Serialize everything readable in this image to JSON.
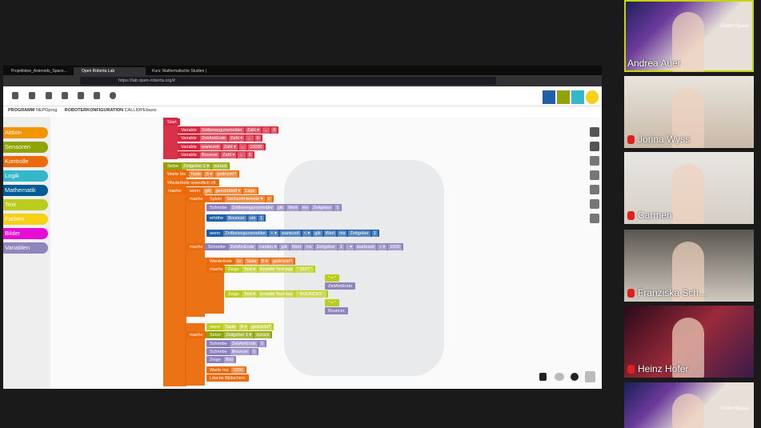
{
  "browser": {
    "tabs": [
      "Projektidee_Asteroids_Space...",
      "Open Roberta Lab",
      "Kurs: Mathematische Studien |"
    ],
    "url": "https://lab.open-roberta.org/#"
  },
  "menu": {
    "program_label": "PROGRAMM",
    "program_name": "NEPOprog",
    "config_label": "ROBOTERKONFIGURATION",
    "config_name": "CALLIOPEbasis"
  },
  "categories": [
    "Aktion",
    "Sensoren",
    "Kontrolle",
    "Logik",
    "Mathematik",
    "Text",
    "Farben",
    "Bilder",
    "Variablen"
  ],
  "blocks": [
    {
      "parts": [
        "Start"
      ]
    },
    {
      "parts": [
        "Variable",
        "Zeitbewegunsmelder",
        "Zahl ▾",
        "←",
        "0"
      ]
    },
    {
      "parts": [
        "Variable",
        "ZeitAmEnde",
        "Zahl ▾",
        "←",
        "0"
      ]
    },
    {
      "parts": [
        "Variable",
        "wartezeit",
        "Zahl ▾",
        "←",
        "10000"
      ]
    },
    {
      "parts": [
        "Variable",
        "Bouncer",
        "Zahl ▾",
        "←",
        "0"
      ]
    },
    {
      "parts": [
        "Setze",
        "Zeitgeber 1 ▾",
        "zurück"
      ]
    },
    {
      "parts": [
        "Warte bis",
        "Taste",
        "B ▾",
        "gedrückt?"
      ]
    },
    {
      "parts": [
        "Wiederhole unendlich oft"
      ]
    },
    {
      "parts": [
        "mache"
      ]
    },
    {
      "parts": [
        "wenn",
        "gib",
        "geschüttelt ▾",
        "Lage"
      ]
    },
    {
      "parts": [
        "mache"
      ]
    },
    {
      "parts": [
        "Spiele",
        "Sechzehntelnote ▾",
        "c'"
      ]
    },
    {
      "parts": [
        "Schreibe",
        "Zeitbewegunsmelder",
        "gib",
        "Wert",
        "ms",
        "Zeitgeber",
        "1"
      ]
    },
    {
      "parts": [
        "erhöhe",
        "Bouncer",
        "um",
        "1"
      ]
    },
    {
      "parts": [
        "wenn",
        "Zeitbewegunsmelder",
        "+ ▾",
        "wartezeit",
        "< ▾",
        "gib",
        "Wert",
        "ms",
        "Zeitgeber",
        "1"
      ]
    },
    {
      "parts": [
        "mache"
      ]
    },
    {
      "parts": [
        "Schreibe",
        "ZeitAmEnde",
        "runden ▾",
        "gib",
        "Wert",
        "ms",
        "Zeitgeber",
        "1",
        "- ▾",
        "wartezeit",
        "÷ ▾",
        "1000"
      ]
    },
    {
      "parts": [
        "Wiederhole",
        "1x",
        "Taste",
        "B ▾",
        "gedrückt?"
      ]
    },
    {
      "parts": [
        "mache"
      ]
    },
    {
      "parts": [
        "Zeige",
        "Text ▾",
        "Erstelle Text aus",
        "\" ZEIT \""
      ]
    },
    {
      "parts": [
        "\" = \""
      ]
    },
    {
      "parts": [
        "ZeitAmEnde"
      ]
    },
    {
      "parts": [
        "Zeige",
        "Text ▾",
        "Erstelle Text aus",
        "\" BOUNCES \""
      ]
    },
    {
      "parts": [
        "\" = \""
      ]
    },
    {
      "parts": [
        "Bouncer"
      ]
    },
    {
      "parts": [
        "wenn",
        "Taste",
        "B ▾",
        "gedrückt?"
      ]
    },
    {
      "parts": [
        "mache"
      ]
    },
    {
      "parts": [
        "Setze",
        "Zeitgeber 1 ▾",
        "zurück"
      ]
    },
    {
      "parts": [
        "Schreibe",
        "ZeitAmEnde",
        "0"
      ]
    },
    {
      "parts": [
        "Schreibe",
        "Bouncer",
        "0"
      ]
    },
    {
      "parts": [
        "Zeige",
        "Bild"
      ]
    },
    {
      "parts": [
        "Warte ms",
        "1000"
      ]
    },
    {
      "parts": [
        "Lösche Bildschirm"
      ]
    }
  ],
  "participants": [
    "Andrea Auer",
    "Jorina Wyss",
    "Carmen",
    "Franziska Sch...",
    "Heinz Hofer",
    ""
  ],
  "logo_text": "Coder•Space"
}
